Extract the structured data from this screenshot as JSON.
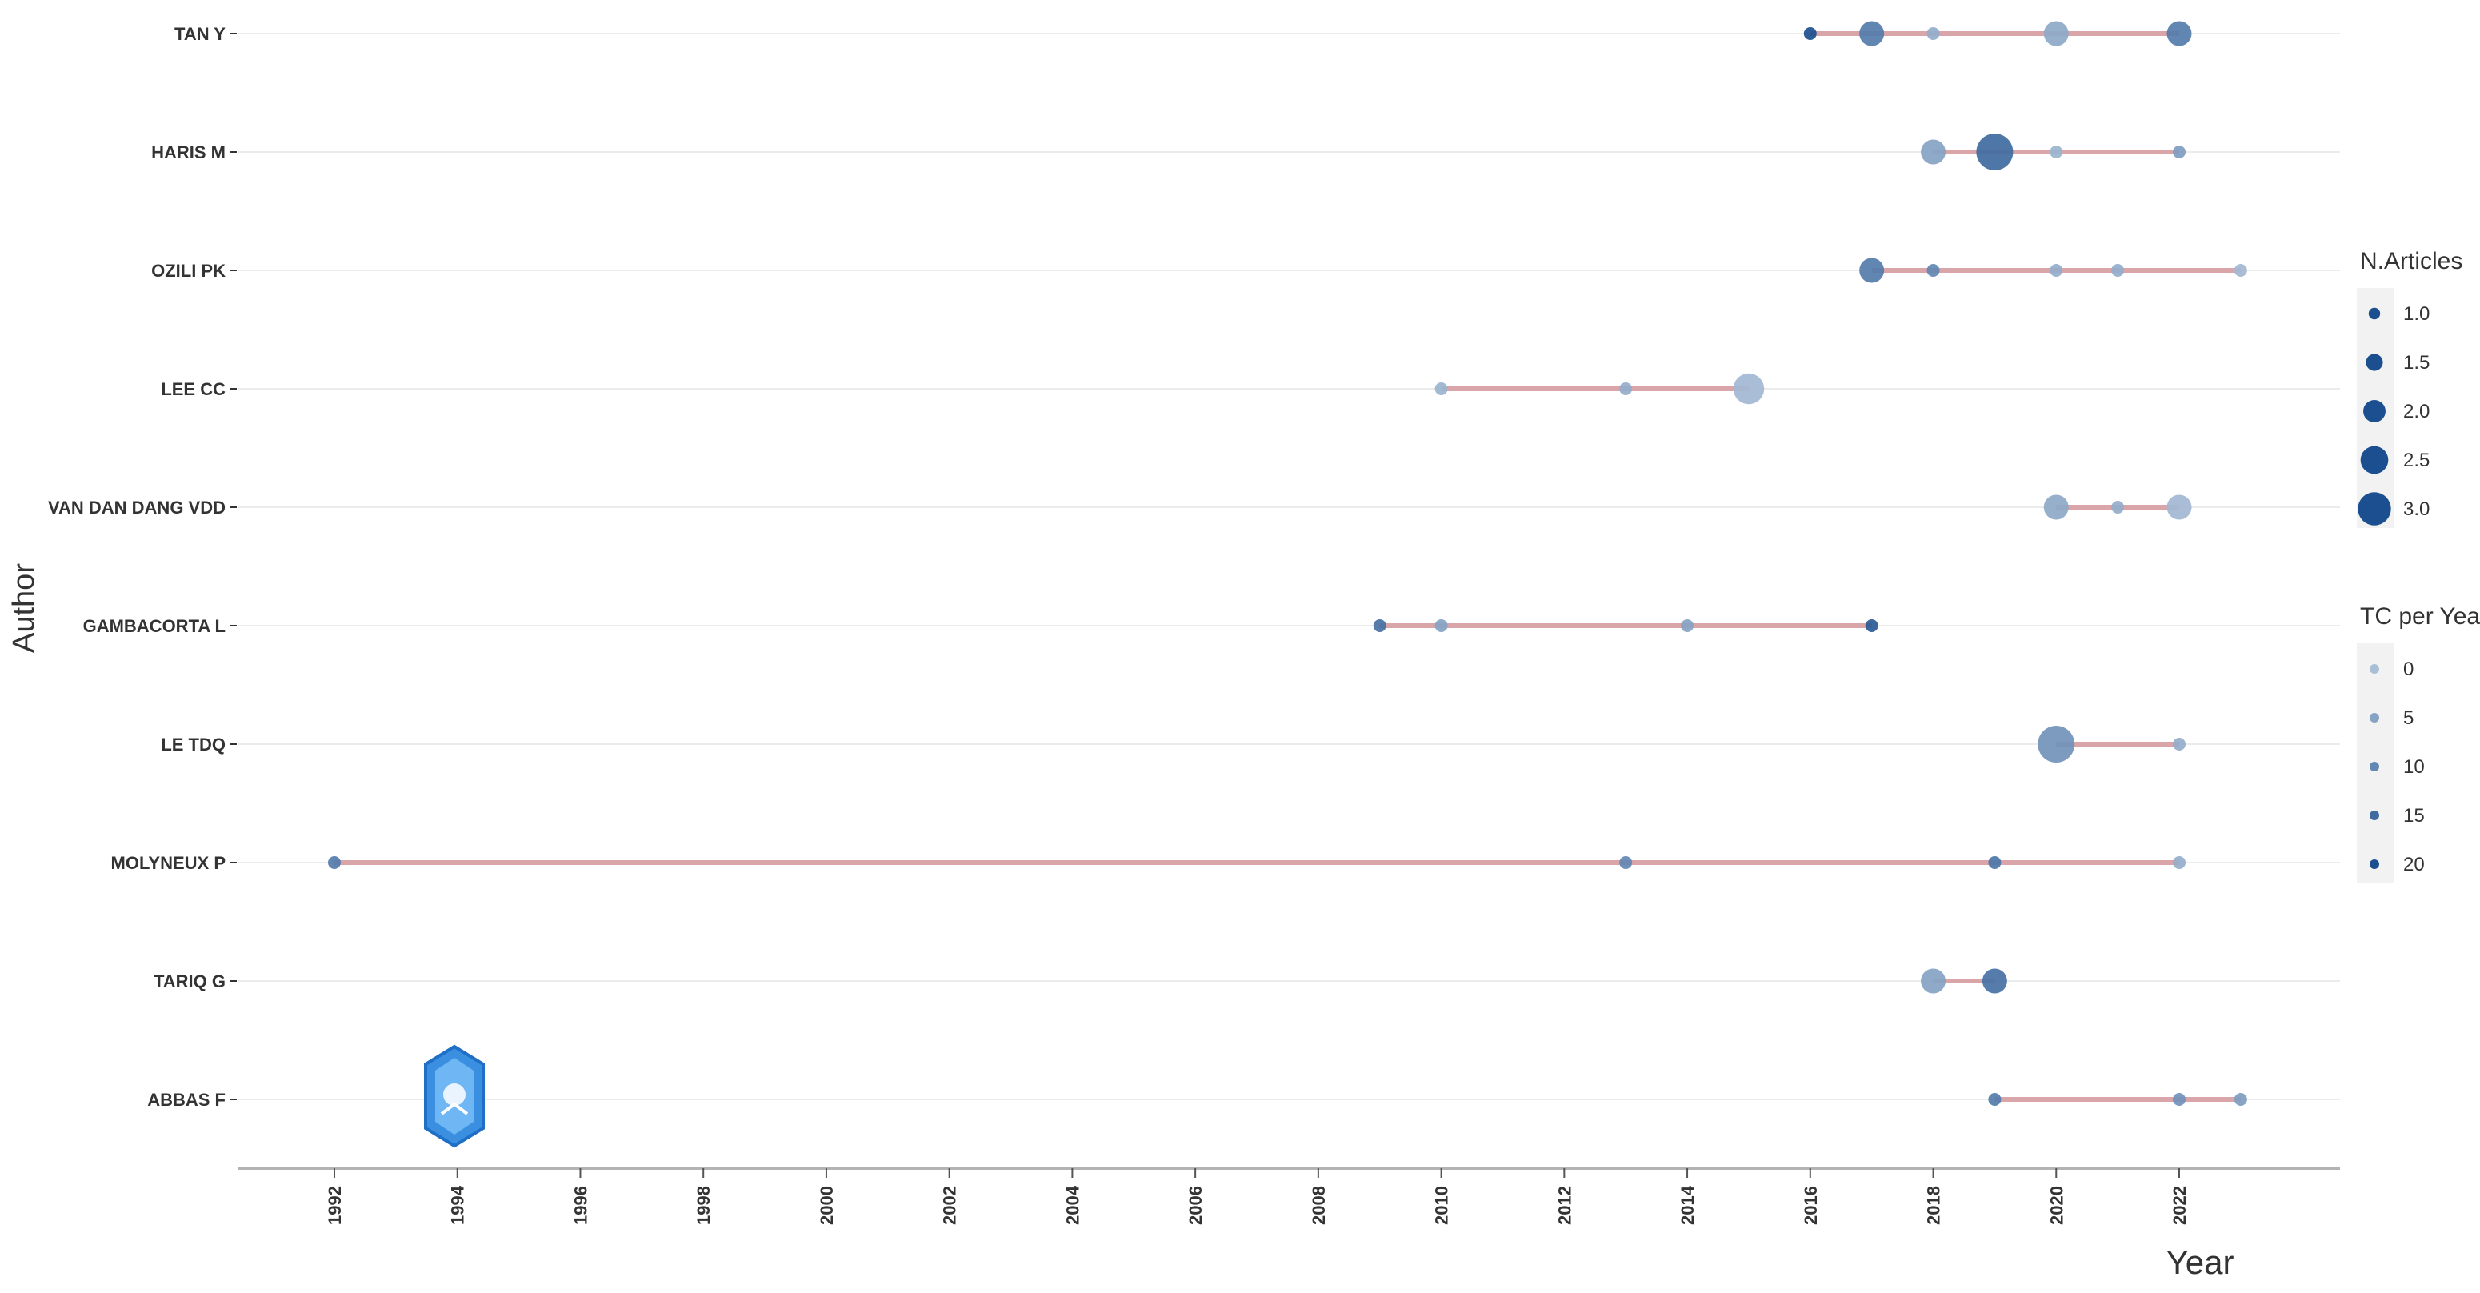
{
  "colors": {
    "segment": "#d9a5a8",
    "point_dark": "#1c4f8f",
    "point_light": "#a9bfd6",
    "gridline": "#ebebeb",
    "axis": "#b3b3b3",
    "text": "#333333",
    "watermark": "#3a8fe0"
  },
  "chart_data": {
    "type": "scatter",
    "xlabel": "Year",
    "ylabel": "Author",
    "xlim": [
      1991,
      2025
    ],
    "x_ticks": [
      1992,
      1994,
      1996,
      1998,
      2000,
      2002,
      2004,
      2006,
      2008,
      2010,
      2012,
      2014,
      2016,
      2018,
      2020,
      2022
    ],
    "authors": [
      "TAN Y",
      "HARIS M",
      "OZILI PK",
      "LEE CC",
      "VAN DAN DANG VDD",
      "GAMBACORTA L",
      "LE TDQ",
      "MOLYNEUX P",
      "TARIQ G",
      "ABBAS F"
    ],
    "segments": [
      {
        "author": "TAN Y",
        "from": 2016,
        "to": 2022
      },
      {
        "author": "HARIS M",
        "from": 2018,
        "to": 2022
      },
      {
        "author": "OZILI PK",
        "from": 2017,
        "to": 2023
      },
      {
        "author": "LEE CC",
        "from": 2010,
        "to": 2015
      },
      {
        "author": "VAN DAN DANG VDD",
        "from": 2020,
        "to": 2022
      },
      {
        "author": "GAMBACORTA L",
        "from": 2009,
        "to": 2017
      },
      {
        "author": "LE TDQ",
        "from": 2020,
        "to": 2022
      },
      {
        "author": "MOLYNEUX P",
        "from": 1992,
        "to": 2022
      },
      {
        "author": "TARIQ G",
        "from": 2018,
        "to": 2019
      },
      {
        "author": "ABBAS F",
        "from": 2019,
        "to": 2023
      }
    ],
    "points": [
      {
        "author": "TAN Y",
        "year": 2016,
        "n_articles": 1,
        "tc_per_year": 20
      },
      {
        "author": "TAN Y",
        "year": 2017,
        "n_articles": 2,
        "tc_per_year": 12
      },
      {
        "author": "TAN Y",
        "year": 2018,
        "n_articles": 1,
        "tc_per_year": 3
      },
      {
        "author": "TAN Y",
        "year": 2020,
        "n_articles": 2,
        "tc_per_year": 4
      },
      {
        "author": "TAN Y",
        "year": 2022,
        "n_articles": 2,
        "tc_per_year": 12
      },
      {
        "author": "HARIS M",
        "year": 2018,
        "n_articles": 2,
        "tc_per_year": 5
      },
      {
        "author": "HARIS M",
        "year": 2019,
        "n_articles": 3,
        "tc_per_year": 15
      },
      {
        "author": "HARIS M",
        "year": 2020,
        "n_articles": 1,
        "tc_per_year": 2
      },
      {
        "author": "HARIS M",
        "year": 2022,
        "n_articles": 1,
        "tc_per_year": 6
      },
      {
        "author": "OZILI PK",
        "year": 2017,
        "n_articles": 2,
        "tc_per_year": 12
      },
      {
        "author": "OZILI PK",
        "year": 2018,
        "n_articles": 1,
        "tc_per_year": 10
      },
      {
        "author": "OZILI PK",
        "year": 2020,
        "n_articles": 1,
        "tc_per_year": 3
      },
      {
        "author": "OZILI PK",
        "year": 2021,
        "n_articles": 1,
        "tc_per_year": 3
      },
      {
        "author": "OZILI PK",
        "year": 2023,
        "n_articles": 1,
        "tc_per_year": 1
      },
      {
        "author": "LEE CC",
        "year": 2010,
        "n_articles": 1,
        "tc_per_year": 2
      },
      {
        "author": "LEE CC",
        "year": 2013,
        "n_articles": 1,
        "tc_per_year": 3
      },
      {
        "author": "LEE CC",
        "year": 2015,
        "n_articles": 2.5,
        "tc_per_year": 1
      },
      {
        "author": "VAN DAN DANG VDD",
        "year": 2020,
        "n_articles": 2,
        "tc_per_year": 4
      },
      {
        "author": "VAN DAN DANG VDD",
        "year": 2021,
        "n_articles": 1,
        "tc_per_year": 3
      },
      {
        "author": "VAN DAN DANG VDD",
        "year": 2022,
        "n_articles": 2,
        "tc_per_year": 1
      },
      {
        "author": "GAMBACORTA L",
        "year": 2009,
        "n_articles": 1,
        "tc_per_year": 14
      },
      {
        "author": "GAMBACORTA L",
        "year": 2010,
        "n_articles": 1,
        "tc_per_year": 5
      },
      {
        "author": "GAMBACORTA L",
        "year": 2014,
        "n_articles": 1,
        "tc_per_year": 5
      },
      {
        "author": "GAMBACORTA L",
        "year": 2017,
        "n_articles": 1,
        "tc_per_year": 18
      },
      {
        "author": "LE TDQ",
        "year": 2020,
        "n_articles": 3,
        "tc_per_year": 8
      },
      {
        "author": "LE TDQ",
        "year": 2022,
        "n_articles": 1,
        "tc_per_year": 3
      },
      {
        "author": "MOLYNEUX P",
        "year": 1992,
        "n_articles": 1,
        "tc_per_year": 12
      },
      {
        "author": "MOLYNEUX P",
        "year": 2013,
        "n_articles": 1,
        "tc_per_year": 10
      },
      {
        "author": "MOLYNEUX P",
        "year": 2019,
        "n_articles": 1,
        "tc_per_year": 13
      },
      {
        "author": "MOLYNEUX P",
        "year": 2022,
        "n_articles": 1,
        "tc_per_year": 3
      },
      {
        "author": "TARIQ G",
        "year": 2018,
        "n_articles": 2,
        "tc_per_year": 5
      },
      {
        "author": "TARIQ G",
        "year": 2019,
        "n_articles": 2,
        "tc_per_year": 14
      },
      {
        "author": "ABBAS F",
        "year": 2019,
        "n_articles": 1,
        "tc_per_year": 12
      },
      {
        "author": "ABBAS F",
        "year": 2022,
        "n_articles": 1,
        "tc_per_year": 8
      },
      {
        "author": "ABBAS F",
        "year": 2023,
        "n_articles": 1,
        "tc_per_year": 6
      }
    ],
    "legends": [
      {
        "title": "N.Articles",
        "items": [
          "1.0",
          "1.5",
          "2.0",
          "2.5",
          "3.0"
        ],
        "values": [
          1,
          1.5,
          2,
          2.5,
          3
        ]
      },
      {
        "title": "TC per Year",
        "items": [
          "0",
          "5",
          "10",
          "15",
          "20"
        ],
        "values": [
          0,
          5,
          10,
          15,
          20
        ]
      }
    ],
    "grid": true,
    "legend_position": "right"
  }
}
